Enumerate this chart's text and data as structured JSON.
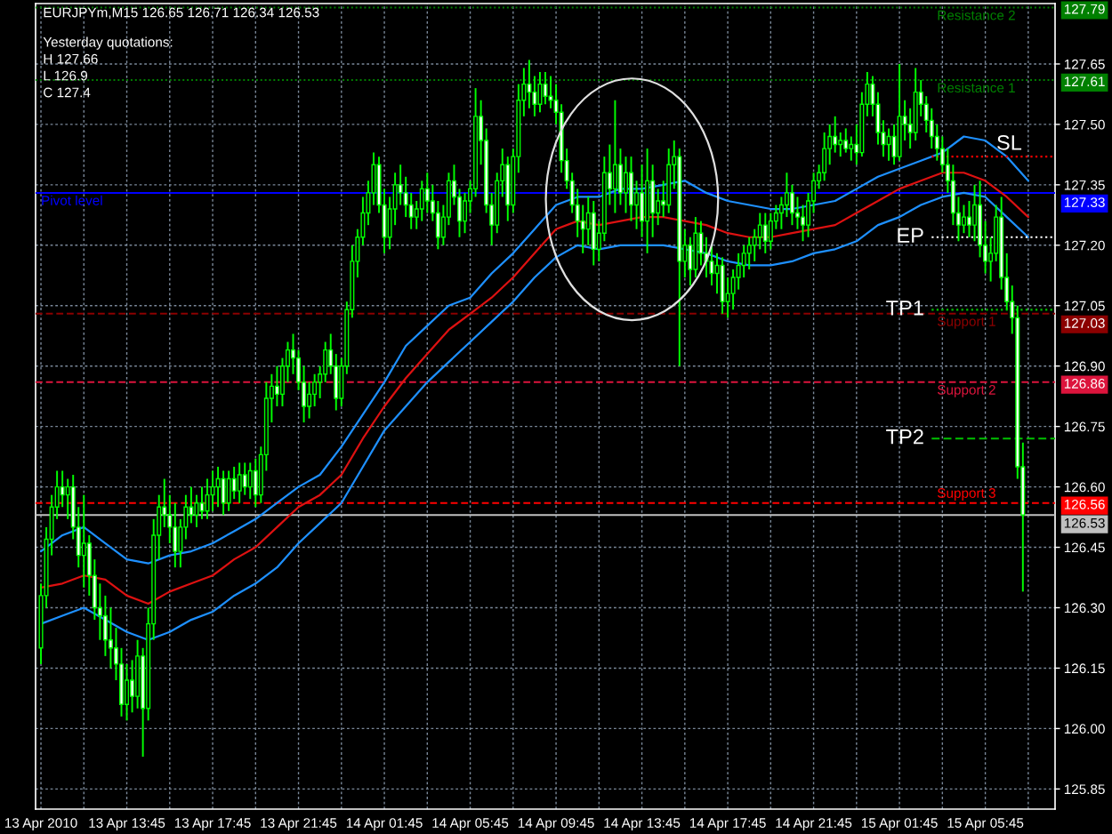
{
  "chart_data": {
    "type": "candlestick",
    "title": "EURJPYm,M15 126.65 126.71 126.34 126.53",
    "x": [
      "2010-04-13T09:45",
      "2010-04-13T10:00",
      "2010-04-13T10:15",
      "2010-04-13T10:30",
      "2010-04-13T10:45",
      "2010-04-13T11:00",
      "2010-04-13T11:15",
      "2010-04-13T11:30",
      "2010-04-13T11:45",
      "2010-04-13T12:00",
      "2010-04-13T12:15",
      "2010-04-13T12:30",
      "2010-04-13T12:45",
      "2010-04-13T13:00",
      "2010-04-13T13:15",
      "2010-04-13T13:30",
      "2010-04-13T13:45",
      "2010-04-13T14:00",
      "2010-04-13T14:15",
      "2010-04-13T14:30",
      "2010-04-13T14:45",
      "2010-04-13T15:00",
      "2010-04-13T15:15",
      "2010-04-13T15:30",
      "2010-04-13T15:45",
      "2010-04-13T16:00",
      "2010-04-13T16:15",
      "2010-04-13T16:30",
      "2010-04-13T16:45",
      "2010-04-13T17:00",
      "2010-04-13T17:15",
      "2010-04-13T17:30",
      "2010-04-13T17:45",
      "2010-04-13T18:00",
      "2010-04-13T18:15",
      "2010-04-13T18:30",
      "2010-04-13T18:45",
      "2010-04-13T19:00",
      "2010-04-13T19:15",
      "2010-04-13T19:30",
      "2010-04-13T19:45",
      "2010-04-13T20:00",
      "2010-04-13T20:15",
      "2010-04-13T20:30",
      "2010-04-13T20:45",
      "2010-04-13T21:00",
      "2010-04-13T21:15",
      "2010-04-13T21:30",
      "2010-04-13T21:45",
      "2010-04-13T22:00",
      "2010-04-13T22:15",
      "2010-04-13T22:30",
      "2010-04-13T22:45",
      "2010-04-13T23:00",
      "2010-04-13T23:15",
      "2010-04-13T23:30",
      "2010-04-13T23:45",
      "2010-04-14T00:00",
      "2010-04-14T00:15",
      "2010-04-14T00:30",
      "2010-04-14T00:45",
      "2010-04-14T01:00",
      "2010-04-14T01:15",
      "2010-04-14T01:30",
      "2010-04-14T01:45",
      "2010-04-14T02:00",
      "2010-04-14T02:15",
      "2010-04-14T02:30",
      "2010-04-14T02:45",
      "2010-04-14T03:00",
      "2010-04-14T03:15",
      "2010-04-14T03:30",
      "2010-04-14T03:45",
      "2010-04-14T04:00",
      "2010-04-14T04:15",
      "2010-04-14T04:30",
      "2010-04-14T04:45",
      "2010-04-14T05:00",
      "2010-04-14T05:15",
      "2010-04-14T05:30",
      "2010-04-14T05:45",
      "2010-04-14T06:00",
      "2010-04-14T06:15",
      "2010-04-14T06:30",
      "2010-04-14T06:45",
      "2010-04-14T07:00",
      "2010-04-14T07:15",
      "2010-04-14T07:30",
      "2010-04-14T07:45",
      "2010-04-14T08:00",
      "2010-04-14T08:15",
      "2010-04-14T08:30",
      "2010-04-14T08:45",
      "2010-04-14T09:00",
      "2010-04-14T09:15",
      "2010-04-14T09:30",
      "2010-04-14T09:45",
      "2010-04-14T10:00",
      "2010-04-14T10:15",
      "2010-04-14T10:30",
      "2010-04-14T10:45",
      "2010-04-14T11:00",
      "2010-04-14T11:15",
      "2010-04-14T11:30",
      "2010-04-14T11:45",
      "2010-04-14T12:00",
      "2010-04-14T12:15",
      "2010-04-14T12:30",
      "2010-04-14T12:45",
      "2010-04-14T13:00",
      "2010-04-14T13:15",
      "2010-04-14T13:30",
      "2010-04-14T13:45",
      "2010-04-14T14:00",
      "2010-04-14T14:15",
      "2010-04-14T14:30",
      "2010-04-14T14:45",
      "2010-04-14T15:00",
      "2010-04-14T15:15",
      "2010-04-14T15:30",
      "2010-04-14T15:45",
      "2010-04-14T16:00",
      "2010-04-14T16:15",
      "2010-04-14T16:30",
      "2010-04-14T16:45",
      "2010-04-14T17:00",
      "2010-04-14T17:15",
      "2010-04-14T17:30",
      "2010-04-14T17:45",
      "2010-04-14T18:00",
      "2010-04-14T18:15",
      "2010-04-14T18:30",
      "2010-04-14T18:45",
      "2010-04-14T19:00",
      "2010-04-14T19:15",
      "2010-04-14T19:30",
      "2010-04-14T19:45",
      "2010-04-14T20:00",
      "2010-04-14T20:15",
      "2010-04-14T20:30",
      "2010-04-14T20:45",
      "2010-04-14T21:00",
      "2010-04-14T21:15",
      "2010-04-14T21:30",
      "2010-04-14T21:45",
      "2010-04-14T22:00",
      "2010-04-14T22:15",
      "2010-04-14T22:30",
      "2010-04-14T22:45",
      "2010-04-14T23:00",
      "2010-04-14T23:15",
      "2010-04-14T23:30",
      "2010-04-14T23:45",
      "2010-04-15T00:00",
      "2010-04-15T00:15",
      "2010-04-15T00:30",
      "2010-04-15T00:45",
      "2010-04-15T01:00",
      "2010-04-15T01:15",
      "2010-04-15T01:30",
      "2010-04-15T01:45",
      "2010-04-15T02:00",
      "2010-04-15T02:15",
      "2010-04-15T02:30",
      "2010-04-15T02:45",
      "2010-04-15T03:00",
      "2010-04-15T03:15",
      "2010-04-15T03:30",
      "2010-04-15T03:45",
      "2010-04-15T04:00",
      "2010-04-15T04:15",
      "2010-04-15T04:30",
      "2010-04-15T04:45",
      "2010-04-15T05:00",
      "2010-04-15T05:15",
      "2010-04-15T05:30",
      "2010-04-15T05:45",
      "2010-04-15T06:00",
      "2010-04-15T06:15",
      "2010-04-15T06:30",
      "2010-04-15T06:45",
      "2010-04-15T07:00",
      "2010-04-15T07:15",
      "2010-04-15T07:30"
    ],
    "ohlc": [
      [
        126.2,
        126.36,
        126.16,
        126.33
      ],
      [
        126.33,
        126.5,
        126.3,
        126.47
      ],
      [
        126.47,
        126.58,
        126.43,
        126.55
      ],
      [
        126.55,
        126.64,
        126.52,
        126.6
      ],
      [
        126.6,
        126.64,
        126.55,
        126.58
      ],
      [
        126.58,
        126.62,
        126.52,
        126.6
      ],
      [
        126.6,
        126.63,
        126.47,
        126.5
      ],
      [
        126.5,
        126.55,
        126.4,
        126.43
      ],
      [
        126.43,
        126.58,
        126.35,
        126.46
      ],
      [
        126.46,
        126.48,
        126.33,
        126.38
      ],
      [
        126.38,
        126.42,
        126.27,
        126.3
      ],
      [
        126.3,
        126.36,
        126.22,
        126.28
      ],
      [
        126.28,
        126.33,
        126.18,
        126.22
      ],
      [
        126.22,
        126.3,
        126.15,
        126.2
      ],
      [
        126.2,
        126.25,
        126.12,
        126.16
      ],
      [
        126.16,
        126.2,
        126.03,
        126.06
      ],
      [
        126.06,
        126.16,
        126.02,
        126.12
      ],
      [
        126.12,
        126.17,
        126.04,
        126.08
      ],
      [
        126.08,
        126.22,
        126.05,
        126.18
      ],
      [
        126.18,
        126.2,
        125.93,
        126.05
      ],
      [
        126.05,
        126.3,
        126.02,
        126.26
      ],
      [
        126.26,
        126.52,
        126.22,
        126.48
      ],
      [
        126.48,
        126.58,
        126.42,
        126.55
      ],
      [
        126.55,
        126.62,
        126.5,
        126.53
      ],
      [
        126.53,
        126.58,
        126.46,
        126.5
      ],
      [
        126.5,
        126.56,
        126.4,
        126.44
      ],
      [
        126.44,
        126.52,
        126.4,
        126.5
      ],
      [
        126.5,
        126.58,
        126.47,
        126.55
      ],
      [
        126.55,
        126.6,
        126.51,
        126.53
      ],
      [
        126.53,
        126.58,
        126.5,
        126.56
      ],
      [
        126.56,
        126.6,
        126.52,
        126.54
      ],
      [
        126.54,
        126.62,
        126.52,
        126.58
      ],
      [
        126.58,
        126.64,
        126.54,
        126.6
      ],
      [
        126.6,
        126.65,
        126.55,
        126.62
      ],
      [
        126.62,
        126.64,
        126.53,
        126.56
      ],
      [
        126.56,
        126.64,
        126.54,
        126.62
      ],
      [
        126.62,
        126.65,
        126.57,
        126.59
      ],
      [
        126.59,
        126.66,
        126.56,
        126.63
      ],
      [
        126.63,
        126.66,
        126.58,
        126.6
      ],
      [
        126.6,
        126.66,
        126.57,
        126.64
      ],
      [
        126.64,
        126.67,
        126.55,
        126.58
      ],
      [
        126.58,
        126.7,
        126.56,
        126.68
      ],
      [
        126.68,
        126.86,
        126.64,
        126.82
      ],
      [
        126.82,
        126.88,
        126.76,
        126.85
      ],
      [
        126.85,
        126.9,
        126.8,
        126.83
      ],
      [
        126.83,
        126.92,
        126.8,
        126.9
      ],
      [
        126.9,
        126.96,
        126.86,
        126.94
      ],
      [
        126.94,
        126.98,
        126.88,
        126.92
      ],
      [
        126.92,
        126.94,
        126.84,
        126.86
      ],
      [
        126.86,
        126.9,
        126.76,
        126.8
      ],
      [
        126.8,
        126.86,
        126.77,
        126.83
      ],
      [
        126.83,
        126.88,
        126.8,
        126.86
      ],
      [
        126.86,
        126.9,
        126.82,
        126.88
      ],
      [
        126.88,
        126.96,
        126.86,
        126.94
      ],
      [
        126.94,
        126.98,
        126.88,
        126.9
      ],
      [
        126.9,
        126.93,
        126.79,
        126.82
      ],
      [
        126.82,
        126.92,
        126.8,
        126.9
      ],
      [
        126.9,
        127.06,
        126.88,
        127.04
      ],
      [
        127.04,
        127.2,
        127.02,
        127.16
      ],
      [
        127.16,
        127.24,
        127.12,
        127.22
      ],
      [
        127.22,
        127.32,
        127.2,
        127.28
      ],
      [
        127.28,
        127.36,
        127.25,
        127.33
      ],
      [
        127.33,
        127.43,
        127.3,
        127.4
      ],
      [
        127.4,
        127.42,
        127.28,
        127.3
      ],
      [
        127.3,
        127.34,
        127.18,
        127.22
      ],
      [
        127.22,
        127.32,
        127.19,
        127.29
      ],
      [
        127.29,
        127.38,
        127.25,
        127.35
      ],
      [
        127.35,
        127.4,
        127.3,
        127.33
      ],
      [
        127.33,
        127.37,
        127.27,
        127.3
      ],
      [
        127.3,
        127.33,
        127.24,
        127.27
      ],
      [
        127.27,
        127.31,
        127.24,
        127.29
      ],
      [
        127.29,
        127.36,
        127.26,
        127.34
      ],
      [
        127.34,
        127.38,
        127.28,
        127.31
      ],
      [
        127.31,
        127.35,
        127.26,
        127.28
      ],
      [
        127.28,
        127.31,
        127.19,
        127.22
      ],
      [
        127.22,
        127.3,
        127.2,
        127.27
      ],
      [
        127.27,
        127.38,
        127.25,
        127.36
      ],
      [
        127.36,
        127.4,
        127.3,
        127.32
      ],
      [
        127.32,
        127.34,
        127.22,
        127.26
      ],
      [
        127.26,
        127.33,
        127.23,
        127.31
      ],
      [
        127.31,
        127.36,
        127.28,
        127.34
      ],
      [
        127.34,
        127.59,
        127.32,
        127.52
      ],
      [
        127.52,
        127.56,
        127.4,
        127.46
      ],
      [
        127.46,
        127.49,
        127.28,
        127.3
      ],
      [
        127.3,
        127.33,
        127.2,
        127.25
      ],
      [
        127.25,
        127.38,
        127.23,
        127.36
      ],
      [
        127.36,
        127.44,
        127.32,
        127.4
      ],
      [
        127.4,
        127.42,
        127.26,
        127.3
      ],
      [
        127.3,
        127.44,
        127.28,
        127.42
      ],
      [
        127.42,
        127.6,
        127.38,
        127.56
      ],
      [
        127.56,
        127.64,
        127.52,
        127.6
      ],
      [
        127.6,
        127.66,
        127.54,
        127.58
      ],
      [
        127.58,
        127.62,
        127.52,
        127.55
      ],
      [
        127.55,
        127.63,
        127.53,
        127.6
      ],
      [
        127.6,
        127.63,
        127.55,
        127.57
      ],
      [
        127.57,
        127.62,
        127.54,
        127.56
      ],
      [
        127.56,
        127.6,
        127.5,
        127.53
      ],
      [
        127.53,
        127.55,
        127.38,
        127.41
      ],
      [
        127.41,
        127.44,
        127.34,
        127.36
      ],
      [
        127.36,
        127.38,
        127.28,
        127.3
      ],
      [
        127.3,
        127.34,
        127.22,
        127.26
      ],
      [
        127.26,
        127.3,
        127.18,
        127.24
      ],
      [
        127.24,
        127.32,
        127.2,
        127.28
      ],
      [
        127.28,
        127.31,
        127.15,
        127.19
      ],
      [
        127.19,
        127.26,
        127.16,
        127.23
      ],
      [
        127.23,
        127.42,
        127.21,
        127.38
      ],
      [
        127.38,
        127.45,
        127.3,
        127.34
      ],
      [
        127.34,
        127.56,
        127.28,
        127.4
      ],
      [
        127.4,
        127.44,
        127.3,
        127.33
      ],
      [
        127.33,
        127.42,
        127.28,
        127.38
      ],
      [
        127.38,
        127.42,
        127.26,
        127.3
      ],
      [
        127.3,
        127.36,
        127.24,
        127.33
      ],
      [
        127.33,
        127.4,
        127.22,
        127.26
      ],
      [
        127.26,
        127.44,
        127.18,
        127.36
      ],
      [
        127.36,
        127.4,
        127.22,
        127.28
      ],
      [
        127.28,
        127.34,
        127.25,
        127.31
      ],
      [
        127.31,
        127.36,
        127.27,
        127.3
      ],
      [
        127.3,
        127.44,
        127.28,
        127.4
      ],
      [
        127.4,
        127.46,
        127.34,
        127.42
      ],
      [
        127.42,
        127.44,
        126.9,
        127.16
      ],
      [
        127.16,
        127.24,
        127.12,
        127.2
      ],
      [
        127.2,
        127.22,
        127.1,
        127.14
      ],
      [
        127.14,
        127.27,
        127.12,
        127.23
      ],
      [
        127.23,
        127.26,
        127.15,
        127.18
      ],
      [
        127.18,
        127.22,
        127.12,
        127.16
      ],
      [
        127.16,
        127.2,
        127.1,
        127.13
      ],
      [
        127.13,
        127.18,
        127.08,
        127.15
      ],
      [
        127.15,
        127.17,
        127.03,
        127.06
      ],
      [
        127.06,
        127.12,
        127.02,
        127.08
      ],
      [
        127.08,
        127.14,
        127.04,
        127.12
      ],
      [
        127.12,
        127.18,
        127.09,
        127.15
      ],
      [
        127.15,
        127.2,
        127.12,
        127.18
      ],
      [
        127.18,
        127.22,
        127.14,
        127.2
      ],
      [
        127.2,
        127.24,
        127.16,
        127.22
      ],
      [
        127.22,
        127.28,
        127.19,
        127.25
      ],
      [
        127.25,
        127.28,
        127.18,
        127.21
      ],
      [
        127.21,
        127.28,
        127.19,
        127.26
      ],
      [
        127.26,
        127.3,
        127.24,
        127.28
      ],
      [
        127.28,
        127.32,
        127.24,
        127.3
      ],
      [
        127.3,
        127.38,
        127.27,
        127.33
      ],
      [
        127.33,
        127.35,
        127.25,
        127.28
      ],
      [
        127.28,
        127.32,
        127.24,
        127.27
      ],
      [
        127.27,
        127.3,
        127.21,
        127.25
      ],
      [
        127.25,
        127.33,
        127.22,
        127.31
      ],
      [
        127.31,
        127.38,
        127.28,
        127.36
      ],
      [
        127.36,
        127.4,
        127.34,
        127.38
      ],
      [
        127.38,
        127.48,
        127.36,
        127.44
      ],
      [
        127.44,
        127.5,
        127.4,
        127.47
      ],
      [
        127.47,
        127.52,
        127.43,
        127.45
      ],
      [
        127.45,
        127.48,
        127.42,
        127.46
      ],
      [
        127.46,
        127.49,
        127.43,
        127.44
      ],
      [
        127.44,
        127.47,
        127.41,
        127.45
      ],
      [
        127.45,
        127.5,
        127.4,
        127.43
      ],
      [
        127.43,
        127.58,
        127.42,
        127.55
      ],
      [
        127.55,
        127.63,
        127.52,
        127.6
      ],
      [
        127.6,
        127.62,
        127.52,
        127.55
      ],
      [
        127.55,
        127.58,
        127.45,
        127.48
      ],
      [
        127.48,
        127.51,
        127.42,
        127.45
      ],
      [
        127.45,
        127.49,
        127.41,
        127.47
      ],
      [
        127.47,
        127.5,
        127.4,
        127.42
      ],
      [
        127.42,
        127.65,
        127.41,
        127.52
      ],
      [
        127.52,
        127.56,
        127.46,
        127.5
      ],
      [
        127.5,
        127.54,
        127.44,
        127.48
      ],
      [
        127.48,
        127.64,
        127.46,
        127.58
      ],
      [
        127.58,
        127.61,
        127.52,
        127.55
      ],
      [
        127.55,
        127.57,
        127.48,
        127.51
      ],
      [
        127.51,
        127.54,
        127.44,
        127.47
      ],
      [
        127.47,
        127.5,
        127.41,
        127.44
      ],
      [
        127.44,
        127.47,
        127.38,
        127.4
      ],
      [
        127.4,
        127.44,
        127.33,
        127.36
      ],
      [
        127.36,
        127.4,
        127.25,
        127.28
      ],
      [
        127.28,
        127.32,
        127.21,
        127.25
      ],
      [
        127.25,
        127.3,
        127.23,
        127.27
      ],
      [
        127.27,
        127.31,
        127.22,
        127.25
      ],
      [
        127.25,
        127.35,
        127.21,
        127.3
      ],
      [
        127.3,
        127.36,
        127.17,
        127.2
      ],
      [
        127.2,
        127.26,
        127.13,
        127.16
      ],
      [
        127.16,
        127.22,
        127.11,
        127.18
      ],
      [
        127.18,
        127.3,
        127.16,
        127.27
      ],
      [
        127.27,
        127.32,
        127.09,
        127.12
      ],
      [
        127.12,
        127.18,
        127.04,
        127.06
      ],
      [
        127.06,
        127.1,
        126.98,
        127.02
      ],
      [
        127.02,
        127.05,
        126.62,
        126.65
      ],
      [
        126.65,
        126.71,
        126.34,
        126.53
      ]
    ],
    "color": "#00ff00",
    "colors": [
      "#000000",
      "#000000",
      "#000000",
      "#000000",
      "#ffffff",
      "#000000",
      "#ffffff",
      "#ffffff",
      "#000000",
      "#ffffff",
      "#ffffff",
      "#ffffff",
      "#ffffff",
      "#ffffff",
      "#ffffff",
      "#ffffff",
      "#000000",
      "#ffffff",
      "#000000",
      "#ffffff",
      "#000000",
      "#000000",
      "#000000",
      "#ffffff",
      "#ffffff",
      "#ffffff",
      "#000000",
      "#000000",
      "#ffffff",
      "#000000",
      "#ffffff",
      "#000000",
      "#000000",
      "#000000",
      "#ffffff",
      "#000000",
      "#ffffff",
      "#000000",
      "#ffffff",
      "#000000",
      "#ffffff",
      "#000000",
      "#000000",
      "#000000",
      "#ffffff",
      "#000000",
      "#000000",
      "#ffffff",
      "#ffffff",
      "#ffffff",
      "#000000",
      "#000000",
      "#000000",
      "#000000",
      "#ffffff",
      "#ffffff",
      "#000000",
      "#000000",
      "#000000",
      "#000000",
      "#000000",
      "#000000",
      "#000000",
      "#ffffff",
      "#ffffff",
      "#000000",
      "#000000",
      "#ffffff",
      "#ffffff",
      "#ffffff",
      "#000000",
      "#000000",
      "#ffffff",
      "#ffffff",
      "#ffffff",
      "#000000",
      "#000000",
      "#ffffff",
      "#ffffff",
      "#000000",
      "#000000",
      "#000000",
      "#ffffff",
      "#ffffff",
      "#ffffff",
      "#000000",
      "#000000",
      "#ffffff",
      "#000000",
      "#000000",
      "#000000",
      "#ffffff",
      "#ffffff",
      "#000000",
      "#ffffff",
      "#ffffff",
      "#ffffff",
      "#ffffff",
      "#ffffff",
      "#ffffff",
      "#ffffff",
      "#ffffff",
      "#000000",
      "#ffffff",
      "#000000",
      "#000000",
      "#ffffff",
      "#000000",
      "#ffffff",
      "#000000",
      "#ffffff",
      "#000000",
      "#ffffff",
      "#000000",
      "#ffffff",
      "#000000",
      "#ffffff",
      "#000000",
      "#000000",
      "#ffffff",
      "#000000",
      "#ffffff",
      "#000000",
      "#ffffff",
      "#ffffff",
      "#ffffff",
      "#000000",
      "#ffffff",
      "#000000",
      "#000000",
      "#000000",
      "#000000",
      "#000000",
      "#000000",
      "#000000",
      "#ffffff",
      "#000000",
      "#000000",
      "#000000",
      "#000000",
      "#ffffff",
      "#ffffff",
      "#ffffff",
      "#000000",
      "#000000",
      "#000000",
      "#000000",
      "#000000",
      "#ffffff",
      "#000000",
      "#ffffff",
      "#000000",
      "#ffffff",
      "#000000",
      "#000000",
      "#ffffff",
      "#ffffff",
      "#ffffff",
      "#000000",
      "#ffffff",
      "#000000",
      "#ffffff",
      "#ffffff",
      "#000000",
      "#ffffff",
      "#ffffff",
      "#ffffff",
      "#ffffff",
      "#ffffff",
      "#ffffff",
      "#ffffff",
      "#ffffff",
      "#000000",
      "#ffffff",
      "#000000",
      "#ffffff",
      "#ffffff",
      "#000000",
      "#000000",
      "#ffffff",
      "#ffffff",
      "#ffffff",
      "#ffffff",
      "#ffffff"
    ],
    "series": [
      {
        "type": "line",
        "color": "#1e90ff",
        "x": [
          "2010-04-13T09:45",
          "2010-04-13T10:45",
          "2010-04-13T11:45",
          "2010-04-13T12:45",
          "2010-04-13T13:45",
          "2010-04-13T14:45",
          "2010-04-13T15:45",
          "2010-04-13T16:45",
          "2010-04-13T17:45",
          "2010-04-13T18:45",
          "2010-04-13T19:45",
          "2010-04-13T20:45",
          "2010-04-13T21:45",
          "2010-04-13T22:45",
          "2010-04-13T23:45",
          "2010-04-14T00:45",
          "2010-04-14T01:45",
          "2010-04-14T02:45",
          "2010-04-14T03:45",
          "2010-04-14T04:45",
          "2010-04-14T05:45",
          "2010-04-14T06:45",
          "2010-04-14T07:45",
          "2010-04-14T08:45",
          "2010-04-14T09:45",
          "2010-04-14T10:45",
          "2010-04-14T11:45",
          "2010-04-14T12:45",
          "2010-04-14T13:45",
          "2010-04-14T14:45",
          "2010-04-14T15:45",
          "2010-04-14T16:45",
          "2010-04-14T17:45",
          "2010-04-14T18:45",
          "2010-04-14T19:45",
          "2010-04-14T20:45",
          "2010-04-14T21:45",
          "2010-04-14T22:45",
          "2010-04-14T23:45",
          "2010-04-15T00:45",
          "2010-04-15T01:45",
          "2010-04-15T02:45",
          "2010-04-15T03:45",
          "2010-04-15T04:45",
          "2010-04-15T05:45",
          "2010-04-15T06:45",
          "2010-04-15T07:45"
        ],
        "values": [
          126.44,
          126.48,
          126.5,
          126.46,
          126.42,
          126.41,
          126.43,
          126.44,
          126.46,
          126.49,
          126.52,
          126.56,
          126.6,
          126.63,
          126.7,
          126.78,
          126.86,
          126.95,
          127.0,
          127.05,
          127.07,
          127.13,
          127.18,
          127.24,
          127.3,
          127.32,
          127.32,
          127.34,
          127.34,
          127.35,
          127.36,
          127.33,
          127.31,
          127.3,
          127.29,
          127.29,
          127.3,
          127.31,
          127.34,
          127.37,
          127.39,
          127.41,
          127.43,
          127.47,
          127.46,
          127.42,
          127.36
        ]
      },
      {
        "type": "line",
        "color": "#dd1111",
        "x": [
          "2010-04-13T09:45",
          "2010-04-13T10:45",
          "2010-04-13T11:45",
          "2010-04-13T12:45",
          "2010-04-13T13:45",
          "2010-04-13T14:45",
          "2010-04-13T15:45",
          "2010-04-13T16:45",
          "2010-04-13T17:45",
          "2010-04-13T18:45",
          "2010-04-13T19:45",
          "2010-04-13T20:45",
          "2010-04-13T21:45",
          "2010-04-13T22:45",
          "2010-04-13T23:45",
          "2010-04-14T00:45",
          "2010-04-14T01:45",
          "2010-04-14T02:45",
          "2010-04-14T03:45",
          "2010-04-14T04:45",
          "2010-04-14T05:45",
          "2010-04-14T06:45",
          "2010-04-14T07:45",
          "2010-04-14T08:45",
          "2010-04-14T09:45",
          "2010-04-14T10:45",
          "2010-04-14T11:45",
          "2010-04-14T12:45",
          "2010-04-14T13:45",
          "2010-04-14T14:45",
          "2010-04-14T15:45",
          "2010-04-14T16:45",
          "2010-04-14T17:45",
          "2010-04-14T18:45",
          "2010-04-14T19:45",
          "2010-04-14T20:45",
          "2010-04-14T21:45",
          "2010-04-14T22:45",
          "2010-04-14T23:45",
          "2010-04-15T00:45",
          "2010-04-15T01:45",
          "2010-04-15T02:45",
          "2010-04-15T03:45",
          "2010-04-15T04:45",
          "2010-04-15T05:45",
          "2010-04-15T06:45",
          "2010-04-15T07:45"
        ],
        "values": [
          126.35,
          126.36,
          126.38,
          126.37,
          126.33,
          126.31,
          126.34,
          126.36,
          126.38,
          126.42,
          126.45,
          126.5,
          126.55,
          126.58,
          126.63,
          126.72,
          126.8,
          126.87,
          126.93,
          126.99,
          127.03,
          127.07,
          127.12,
          127.18,
          127.24,
          127.26,
          127.25,
          127.26,
          127.27,
          127.27,
          127.26,
          127.25,
          127.23,
          127.22,
          127.22,
          127.23,
          127.24,
          127.25,
          127.28,
          127.31,
          127.34,
          127.36,
          127.38,
          127.38,
          127.36,
          127.32,
          127.27
        ]
      },
      {
        "type": "line",
        "color": "#1e90ff",
        "x": [
          "2010-04-13T09:45",
          "2010-04-13T10:45",
          "2010-04-13T11:45",
          "2010-04-13T12:45",
          "2010-04-13T13:45",
          "2010-04-13T14:45",
          "2010-04-13T15:45",
          "2010-04-13T16:45",
          "2010-04-13T17:45",
          "2010-04-13T18:45",
          "2010-04-13T19:45",
          "2010-04-13T20:45",
          "2010-04-13T21:45",
          "2010-04-13T22:45",
          "2010-04-13T23:45",
          "2010-04-14T00:45",
          "2010-04-14T01:45",
          "2010-04-14T02:45",
          "2010-04-14T03:45",
          "2010-04-14T04:45",
          "2010-04-14T05:45",
          "2010-04-14T06:45",
          "2010-04-14T07:45",
          "2010-04-14T08:45",
          "2010-04-14T09:45",
          "2010-04-14T10:45",
          "2010-04-14T11:45",
          "2010-04-14T12:45",
          "2010-04-14T13:45",
          "2010-04-14T14:45",
          "2010-04-14T15:45",
          "2010-04-14T16:45",
          "2010-04-14T17:45",
          "2010-04-14T18:45",
          "2010-04-14T19:45",
          "2010-04-14T20:45",
          "2010-04-14T21:45",
          "2010-04-14T22:45",
          "2010-04-14T23:45",
          "2010-04-15T00:45",
          "2010-04-15T01:45",
          "2010-04-15T02:45",
          "2010-04-15T03:45",
          "2010-04-15T04:45",
          "2010-04-15T05:45",
          "2010-04-15T06:45",
          "2010-04-15T07:45"
        ],
        "values": [
          126.26,
          126.28,
          126.3,
          126.27,
          126.24,
          126.22,
          126.24,
          126.27,
          126.29,
          126.33,
          126.36,
          126.4,
          126.46,
          126.51,
          126.56,
          126.65,
          126.74,
          126.8,
          126.86,
          126.91,
          126.96,
          127.01,
          127.06,
          127.12,
          127.17,
          127.2,
          127.19,
          127.2,
          127.2,
          127.2,
          127.19,
          127.18,
          127.16,
          127.15,
          127.15,
          127.16,
          127.18,
          127.19,
          127.21,
          127.25,
          127.27,
          127.3,
          127.32,
          127.33,
          127.32,
          127.27,
          127.22
        ]
      },
      {
        "type": "line",
        "name": "SL",
        "color": "#ff0000",
        "line_style": "dotted",
        "x": [
          "2010-04-15T03:15",
          "2010-04-15T09:00"
        ],
        "values": [
          127.42,
          127.42
        ]
      },
      {
        "type": "line",
        "name": "EP",
        "color": "#ffffff",
        "line_style": "dotted",
        "x": [
          "2010-04-15T03:15",
          "2010-04-15T09:00"
        ],
        "values": [
          127.22,
          127.22
        ]
      },
      {
        "type": "line",
        "name": "TP1",
        "color": "#00c000",
        "line_style": "dotted",
        "x": [
          "2010-04-15T03:15",
          "2010-04-15T09:00"
        ],
        "values": [
          127.04,
          127.04
        ]
      },
      {
        "type": "line",
        "name": "TP2",
        "color": "#00c000",
        "line_style": "dashed",
        "x": [
          "2010-04-15T03:15",
          "2010-04-15T09:00"
        ],
        "values": [
          126.72,
          126.72
        ]
      }
    ],
    "ref_lines": [
      {
        "axis": "y",
        "value": 127.79,
        "label": "127.79",
        "color": "#008000",
        "line_style": "dotted"
      },
      {
        "axis": "y",
        "value": 127.61,
        "label": "127.61",
        "color": "#008000",
        "line_style": "dotted"
      },
      {
        "axis": "y",
        "value": 127.33,
        "label": "127.33",
        "color": "#0000ff",
        "line_style": "solid"
      },
      {
        "axis": "y",
        "value": 127.03,
        "label": "127.03",
        "color": "#8b0000",
        "line_style": "dashed"
      },
      {
        "axis": "y",
        "value": 126.86,
        "label": "126.86",
        "color": "#dc143c",
        "line_style": "dashed"
      },
      {
        "axis": "y",
        "value": 126.56,
        "label": "126.56",
        "color": "#ff0000",
        "line_style": "dashed"
      },
      {
        "axis": "y",
        "value": 126.53,
        "label": "126.53",
        "color": "#c0c0c0",
        "line_style": "solid"
      }
    ],
    "annotations": [
      "Yesterday quotations:",
      "H 127.66",
      "L 126.9",
      "C 127.4",
      {
        "text": "Resistance 2",
        "x": "2010-04-15T03:30",
        "y": 127.79
      },
      {
        "text": "Resistance 1",
        "x": "2010-04-15T03:30",
        "y": 127.61
      },
      {
        "text": "Pivot level",
        "x": "2010-04-13T09:45",
        "y": 127.33
      },
      {
        "text": "Support 1",
        "x": "2010-04-15T03:30",
        "y": 127.03
      },
      {
        "text": "Support 2",
        "x": "2010-04-15T03:30",
        "y": 126.86
      },
      {
        "text": "Support 3",
        "x": "2010-04-15T03:30",
        "y": 126.56
      }
    ],
    "xlim": [
      "2010-04-13T09:30",
      "2010-04-15T09:00"
    ],
    "xticks": [
      {
        "value": "2010-04-13T09:45",
        "label": "13 Apr 2010"
      },
      {
        "value": "2010-04-13T11:45",
        "label": null
      },
      {
        "value": "2010-04-13T13:45",
        "label": "13 Apr 13:45"
      },
      {
        "value": "2010-04-13T15:45",
        "label": null
      },
      {
        "value": "2010-04-13T17:45",
        "label": "13 Apr 17:45"
      },
      {
        "value": "2010-04-13T19:45",
        "label": null
      },
      {
        "value": "2010-04-13T21:45",
        "label": "13 Apr 21:45"
      },
      {
        "value": "2010-04-13T23:45",
        "label": null
      },
      {
        "value": "2010-04-14T01:45",
        "label": "14 Apr 01:45"
      },
      {
        "value": "2010-04-14T03:45",
        "label": null
      },
      {
        "value": "2010-04-14T05:45",
        "label": "14 Apr 05:45"
      },
      {
        "value": "2010-04-14T07:45",
        "label": null
      },
      {
        "value": "2010-04-14T09:45",
        "label": "14 Apr 09:45"
      },
      {
        "value": "2010-04-14T11:45",
        "label": null
      },
      {
        "value": "2010-04-14T13:45",
        "label": "14 Apr 13:45"
      },
      {
        "value": "2010-04-14T15:45",
        "label": null
      },
      {
        "value": "2010-04-14T17:45",
        "label": "14 Apr 17:45"
      },
      {
        "value": "2010-04-14T19:45",
        "label": null
      },
      {
        "value": "2010-04-14T21:45",
        "label": "14 Apr 21:45"
      },
      {
        "value": "2010-04-14T23:45",
        "label": null
      },
      {
        "value": "2010-04-15T01:45",
        "label": "15 Apr 01:45"
      },
      {
        "value": "2010-04-15T03:45",
        "label": null
      },
      {
        "value": "2010-04-15T05:45",
        "label": "15 Apr 05:45"
      },
      {
        "value": "2010-04-15T07:45",
        "label": null
      }
    ],
    "ylim": [
      125.8,
      127.8
    ],
    "yticks": [
      127.65,
      {
        "value": 127.5,
        "label": "127.50"
      },
      127.35,
      {
        "value": 127.2,
        "label": "127.20"
      },
      127.05,
      {
        "value": 126.9,
        "label": "126.90"
      },
      126.75,
      {
        "value": 126.6,
        "label": "126.60"
      },
      126.45,
      {
        "value": 126.3,
        "label": "126.30"
      },
      126.15,
      {
        "value": 126.0,
        "label": "126.00"
      },
      125.85
    ],
    "grid": true
  }
}
